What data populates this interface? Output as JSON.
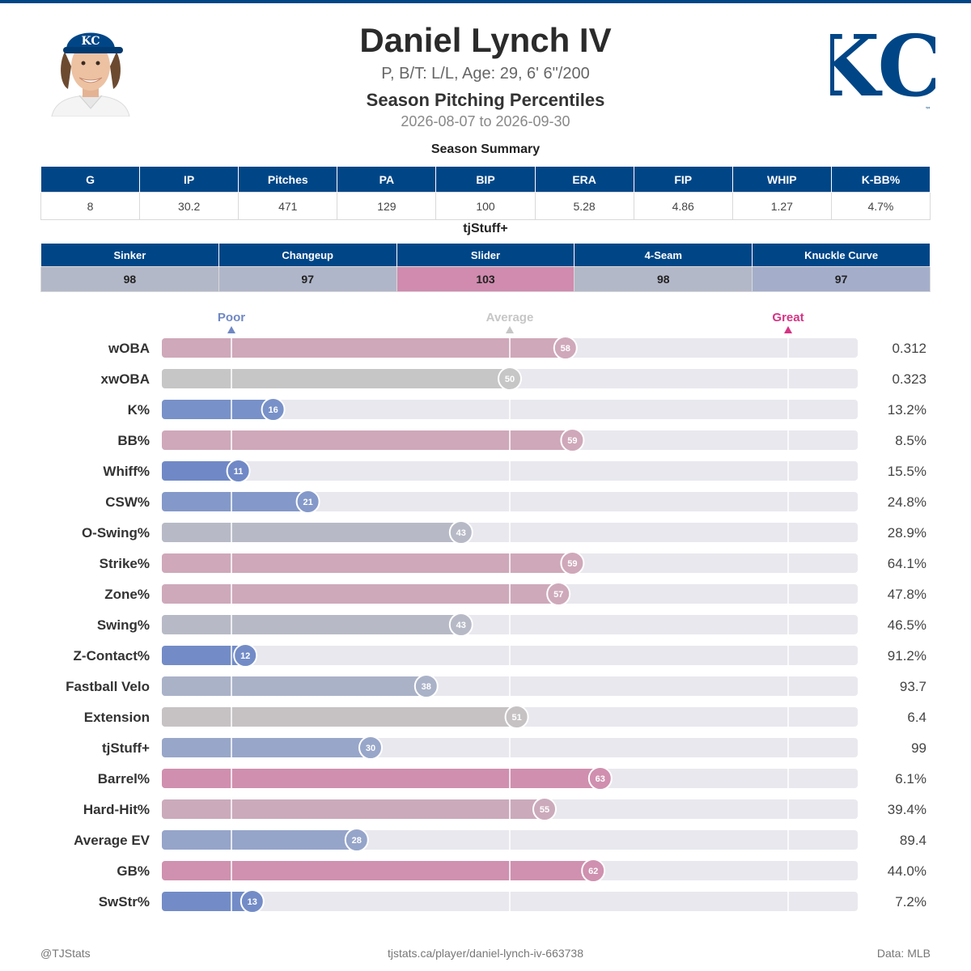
{
  "player": {
    "name": "Daniel Lynch IV",
    "info": "P, B/T: L/L, Age: 29, 6' 6\"/200",
    "subtitle": "Season Pitching Percentiles",
    "dates": "2026-08-07 to 2026-09-30"
  },
  "team_logo_text": "KC",
  "colors": {
    "navy": "#004687",
    "poor": "#7089c6",
    "average": "#c6c6c6",
    "great": "#cf89ad",
    "track": "#e8e8ee"
  },
  "summary": {
    "title": "Season Summary",
    "headers": [
      "G",
      "IP",
      "Pitches",
      "PA",
      "BIP",
      "ERA",
      "FIP",
      "WHIP",
      "K-BB%"
    ],
    "values": [
      "8",
      "30.2",
      "471",
      "129",
      "100",
      "5.28",
      "4.86",
      "1.27",
      "4.7%"
    ]
  },
  "tjstuff": {
    "title": "tjStuff+",
    "headers": [
      "Sinker",
      "Changeup",
      "Slider",
      "4-Seam",
      "Knuckle Curve"
    ],
    "values": [
      "98",
      "97",
      "103",
      "98",
      "97"
    ],
    "cell_colors": [
      "#b3b8c8",
      "#b0b6c9",
      "#d08bae",
      "#b3b8c8",
      "#a4aecb"
    ]
  },
  "chart_data": {
    "type": "bar",
    "orientation": "horizontal",
    "scale_markers": [
      {
        "label": "Poor",
        "value": 10,
        "color": "#6f88c4"
      },
      {
        "label": "Average",
        "value": 50,
        "color": "#c6c6c6"
      },
      {
        "label": "Great",
        "value": 90,
        "color": "#d63384"
      }
    ],
    "xlim": [
      0,
      100
    ],
    "categories": [
      "wOBA",
      "xwOBA",
      "K%",
      "BB%",
      "Whiff%",
      "CSW%",
      "O-Swing%",
      "Strike%",
      "Zone%",
      "Swing%",
      "Z-Contact%",
      "Fastball Velo",
      "Extension",
      "tjStuff+",
      "Barrel%",
      "Hard-Hit%",
      "Average EV",
      "GB%",
      "SwStr%"
    ],
    "percentiles": [
      58,
      50,
      16,
      59,
      11,
      21,
      43,
      59,
      57,
      43,
      12,
      38,
      51,
      30,
      63,
      55,
      28,
      62,
      13
    ],
    "stat_values": [
      "0.312",
      "0.323",
      "13.2%",
      "8.5%",
      "15.5%",
      "24.8%",
      "28.9%",
      "64.1%",
      "47.8%",
      "46.5%",
      "91.2%",
      "93.7",
      "6.4",
      "99",
      "6.1%",
      "39.4%",
      "89.4",
      "44.0%",
      "7.2%"
    ],
    "bar_colors": [
      "#cfa8b9",
      "#c6c6c6",
      "#7891c8",
      "#cfa8b9",
      "#7089c6",
      "#8499c9",
      "#b7bac6",
      "#cfa8b9",
      "#cea9ba",
      "#b7bac6",
      "#738cc7",
      "#aab2c8",
      "#c6c2c4",
      "#98a6c9",
      "#d08fae",
      "#cbaabb",
      "#95a4c9",
      "#cf91af",
      "#738cc7"
    ]
  },
  "footer": {
    "left": "@TJStats",
    "center": "tjstats.ca/player/daniel-lynch-iv-663738",
    "right": "Data: MLB"
  }
}
